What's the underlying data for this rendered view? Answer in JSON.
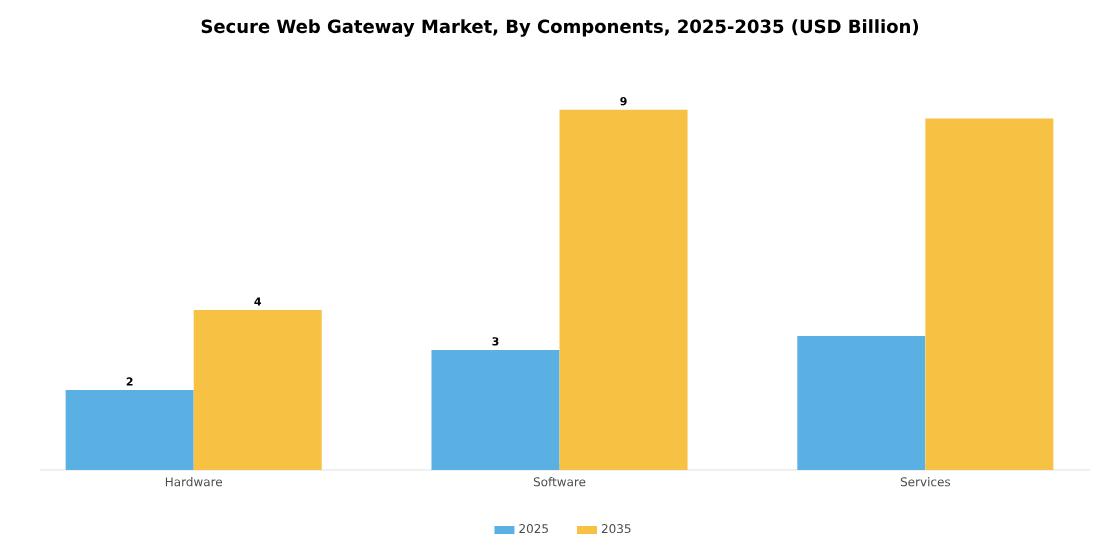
{
  "chart_data": {
    "type": "bar",
    "title": "Secure Web Gateway Market, By Components, 2025-2035 (USD Billion)",
    "categories": [
      "Hardware",
      "Software",
      "Services"
    ],
    "series": [
      {
        "name": "2025",
        "color": "#5aafe3",
        "values": [
          2,
          3,
          3.35
        ],
        "value_labels": [
          "2",
          "3",
          null
        ]
      },
      {
        "name": "2035",
        "color": "#f7c144",
        "values": [
          4,
          9,
          8.78
        ],
        "value_labels": [
          "4",
          "9",
          null
        ]
      }
    ],
    "legend": "bottom",
    "grid": false
  }
}
